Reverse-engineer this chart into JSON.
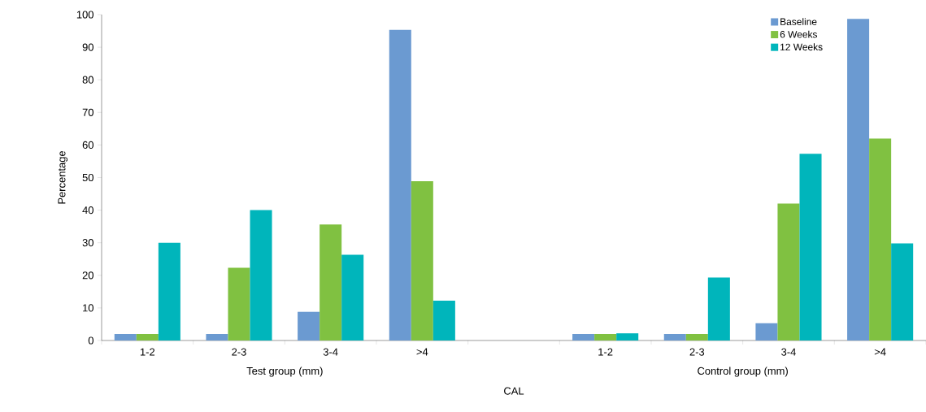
{
  "chart_data": {
    "type": "bar",
    "xlabel": "CAL",
    "ylabel": "Percentage",
    "categories": [
      "1-2",
      "2-3",
      "3-4",
      ">4",
      null,
      "1-2",
      "2-3",
      "3-4",
      ">4"
    ],
    "series": [
      {
        "name": "Baseline",
        "color": "#6b9ad1",
        "values": [
          2,
          2,
          8.8,
          95.3,
          null,
          2,
          2,
          5.3,
          98.7
        ]
      },
      {
        "name": "6 Weeks",
        "color": "#80c141",
        "values": [
          2,
          22.3,
          35.6,
          48.9,
          null,
          2,
          2,
          42,
          62
        ]
      },
      {
        "name": "12 Weeks",
        "color": "#00b5bb",
        "values": [
          30,
          40,
          26.3,
          12.2,
          null,
          2.2,
          19.3,
          57.3,
          29.8
        ]
      }
    ],
    "ylim": [
      0,
      100
    ],
    "yticks": [
      0,
      10,
      20,
      30,
      40,
      50,
      60,
      70,
      80,
      90,
      100
    ],
    "annotations": [
      "Test group (mm)",
      "Control group (mm)"
    ],
    "legend": "top right",
    "grid": false
  }
}
